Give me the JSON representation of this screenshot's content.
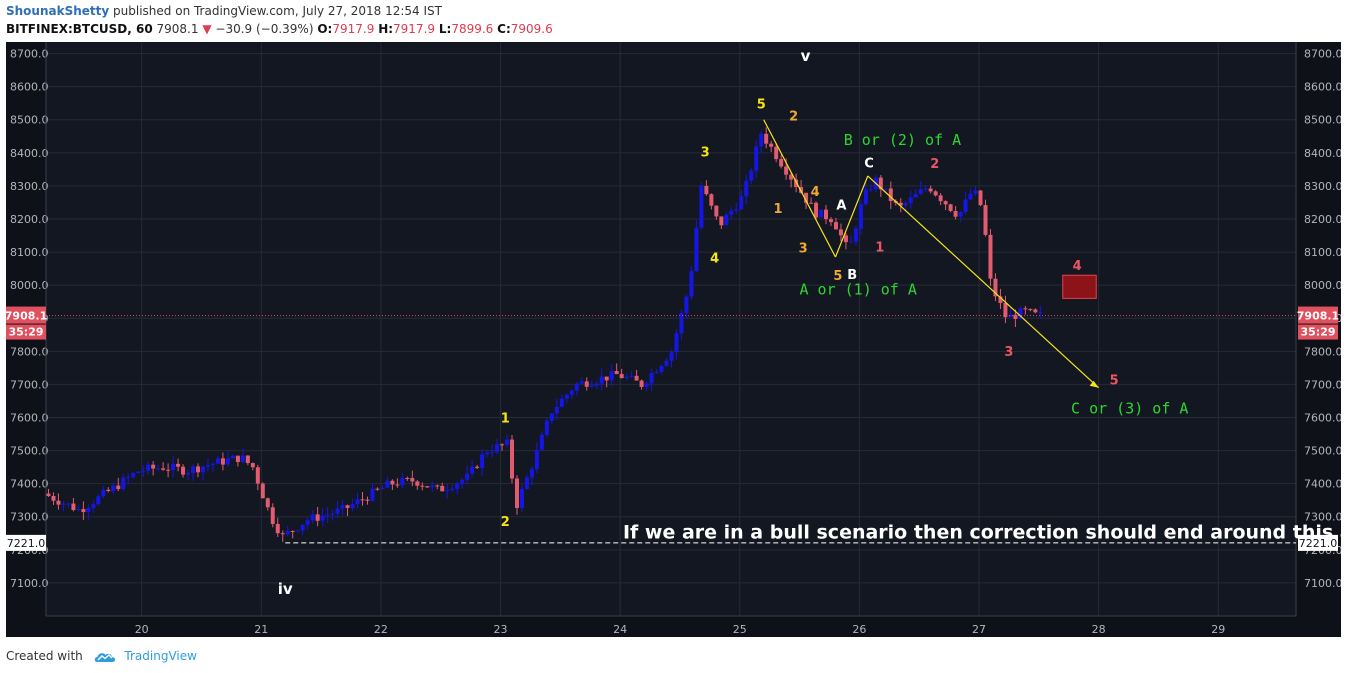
{
  "header": {
    "author": "ShounakShetty",
    "published_text": "published on TradingView.com, July 27, 2018 12:54 IST",
    "symbol": "BITFINEX:BTCUSD, 60",
    "last_price": "7908.1",
    "change_arrow": "▼",
    "change": "−30.9 (−0.39%)",
    "o_label": "O:",
    "o_value": "7917.9",
    "h_label": "H:",
    "h_value": "7917.9",
    "l_label": "L:",
    "l_value": "7899.6",
    "c_label": "C:",
    "c_value": "7909.6"
  },
  "footer": {
    "created_with": "Created with",
    "brand": "TradingView"
  },
  "colors": {
    "background": "#131722",
    "panel_background": "#0f1118",
    "grid": "#262b36",
    "axis_text": "#b2b5be",
    "up_candle": "#1515e6",
    "down_candle": "#e05c6e",
    "price_line": "#e84b5e",
    "price_badge": "#e0515f",
    "wave_yellow": "#f5e416",
    "wave_orange": "#f0a830",
    "wave_red": "#ec5662",
    "wave_green": "#2ed52e",
    "wave_white": "#ffffff",
    "trend_line": "#f5e416",
    "target_box": "#8c1418"
  },
  "chart_data": {
    "type": "candlestick",
    "symbol": "BITFINEX:BTCUSD",
    "interval": "60",
    "x_tick_labels": [
      "20",
      "21",
      "22",
      "23",
      "24",
      "25",
      "26",
      "27",
      "28",
      "29"
    ],
    "x_day_range": [
      19.2,
      29.65
    ],
    "ylim": [
      7000,
      8735
    ],
    "y_ticks": [
      7100,
      7200,
      7300,
      7400,
      7500,
      7600,
      7700,
      7800,
      7900,
      8000,
      8100,
      8200,
      8300,
      8400,
      8500,
      8600,
      8700
    ],
    "y_tick_labels": [
      "7100.0",
      "7200.0",
      "7300.0",
      "7400.0",
      "7500.0",
      "7600.0",
      "7700.0",
      "7800.0",
      "7900.0",
      "8000.0",
      "8100.0",
      "8200.0",
      "8300.0",
      "8400.0",
      "8500.0",
      "8600.0",
      "8700.0"
    ],
    "current_price": 7908.1,
    "current_price_label": "7908.1",
    "countdown_label": "35:29",
    "support_level": 7221.0,
    "support_label": "7221.0",
    "price_path": [
      [
        19.2,
        7370
      ],
      [
        19.5,
        7320
      ],
      [
        19.8,
        7390
      ],
      [
        20.0,
        7440
      ],
      [
        20.2,
        7450
      ],
      [
        20.4,
        7440
      ],
      [
        20.6,
        7460
      ],
      [
        20.85,
        7480
      ],
      [
        20.95,
        7450
      ],
      [
        21.1,
        7300
      ],
      [
        21.2,
        7240
      ],
      [
        21.4,
        7290
      ],
      [
        21.7,
        7320
      ],
      [
        21.9,
        7360
      ],
      [
        22.1,
        7400
      ],
      [
        22.3,
        7410
      ],
      [
        22.5,
        7380
      ],
      [
        22.75,
        7420
      ],
      [
        22.9,
        7500
      ],
      [
        23.08,
        7520
      ],
      [
        23.15,
        7330
      ],
      [
        23.3,
        7470
      ],
      [
        23.45,
        7620
      ],
      [
        23.65,
        7700
      ],
      [
        24.0,
        7730
      ],
      [
        24.2,
        7700
      ],
      [
        24.45,
        7800
      ],
      [
        24.6,
        8000
      ],
      [
        24.7,
        8300
      ],
      [
        24.85,
        8180
      ],
      [
        25.05,
        8270
      ],
      [
        25.2,
        8460
      ],
      [
        25.35,
        8380
      ],
      [
        25.5,
        8300
      ],
      [
        25.65,
        8220
      ],
      [
        25.8,
        8200
      ],
      [
        25.93,
        8100
      ],
      [
        26.05,
        8260
      ],
      [
        26.15,
        8320
      ],
      [
        26.35,
        8230
      ],
      [
        26.6,
        8300
      ],
      [
        26.85,
        8210
      ],
      [
        26.97,
        8290
      ],
      [
        27.05,
        8230
      ],
      [
        27.12,
        8000
      ],
      [
        27.25,
        7900
      ],
      [
        27.4,
        7920
      ],
      [
        27.5,
        7908
      ]
    ],
    "annotations": [
      {
        "text": "v",
        "day": 25.55,
        "price": 8693,
        "color": "white",
        "size": 15
      },
      {
        "text": "iv",
        "day": 21.2,
        "price": 7082,
        "color": "white",
        "size": 15
      },
      {
        "text": "5",
        "day": 25.18,
        "price": 8547,
        "color": "yellow",
        "size": 13
      },
      {
        "text": "3",
        "day": 24.71,
        "price": 8402,
        "color": "yellow",
        "size": 13
      },
      {
        "text": "4",
        "day": 24.79,
        "price": 8083,
        "color": "yellow",
        "size": 13
      },
      {
        "text": "1",
        "day": 23.04,
        "price": 7598,
        "color": "yellow",
        "size": 13
      },
      {
        "text": "2",
        "day": 23.04,
        "price": 7286,
        "color": "yellow",
        "size": 13
      },
      {
        "text": "2",
        "day": 25.45,
        "price": 8511,
        "color": "orange",
        "size": 13
      },
      {
        "text": "1",
        "day": 25.32,
        "price": 8232,
        "color": "orange",
        "size": 13
      },
      {
        "text": "4",
        "day": 25.63,
        "price": 8283,
        "color": "orange",
        "size": 13
      },
      {
        "text": "3",
        "day": 25.53,
        "price": 8112,
        "color": "orange",
        "size": 13
      },
      {
        "text": "5",
        "day": 25.82,
        "price": 8030,
        "color": "orange",
        "size": 13
      },
      {
        "text": "A",
        "day": 25.85,
        "price": 8243,
        "color": "white",
        "size": 13
      },
      {
        "text": "B",
        "day": 25.94,
        "price": 8033,
        "color": "white",
        "size": 13
      },
      {
        "text": "C",
        "day": 26.08,
        "price": 8370,
        "color": "white",
        "size": 13
      },
      {
        "text": "1",
        "day": 26.17,
        "price": 8115,
        "color": "red",
        "size": 13
      },
      {
        "text": "2",
        "day": 26.63,
        "price": 8368,
        "color": "red",
        "size": 13
      },
      {
        "text": "3",
        "day": 27.25,
        "price": 7800,
        "color": "red",
        "size": 13
      },
      {
        "text": "4",
        "day": 27.82,
        "price": 8060,
        "color": "red",
        "size": 13
      },
      {
        "text": "5",
        "day": 28.13,
        "price": 7714,
        "color": "red",
        "size": 13
      },
      {
        "text": "B or (2) of A",
        "day": 26.36,
        "price": 8440,
        "color": "green",
        "size": 15,
        "mono": true
      },
      {
        "text": "A or (1) of A",
        "day": 25.99,
        "price": 7988,
        "color": "green",
        "size": 15,
        "mono": true
      },
      {
        "text": "C or (3) of A",
        "day": 28.26,
        "price": 7628,
        "color": "green",
        "size": 15,
        "mono": true
      },
      {
        "text": "If we are in a bull scenario then correction should end around this area",
        "day": 27.22,
        "price": 7255,
        "color": "white",
        "size": 19
      }
    ],
    "trend_lines": [
      [
        [
          25.2,
          8500
        ],
        [
          25.8,
          8085
        ]
      ],
      [
        [
          25.8,
          8085
        ],
        [
          26.07,
          8330
        ]
      ],
      [
        [
          26.07,
          8330
        ],
        [
          28.0,
          7690
        ]
      ]
    ],
    "target_box": {
      "day_from": 27.7,
      "day_to": 27.98,
      "price_from": 7960,
      "price_to": 8030
    }
  }
}
